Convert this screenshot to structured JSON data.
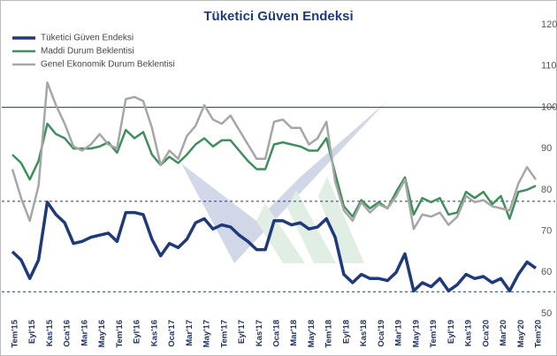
{
  "chart_data": {
    "type": "line",
    "title": "Tüketici Güven Endeksi",
    "categories": [
      "Tem'15",
      null,
      "Eyl'15",
      null,
      "Kas'15",
      null,
      "Oca'16",
      null,
      "Mar'16",
      null,
      "May'16",
      null,
      "Tem'16",
      null,
      "Eyl'16",
      null,
      "Kas'16",
      null,
      "Oca'17",
      null,
      "Mar'17",
      null,
      "May'17",
      null,
      "Tem'17",
      null,
      "Eyl'17",
      null,
      "Kas'17",
      null,
      "Oca'18",
      null,
      "Mar'18",
      null,
      "May'18",
      null,
      "Tem'18",
      null,
      "Eyl'18",
      null,
      "Kas'18",
      null,
      "Oca'19",
      null,
      "Mar'19",
      null,
      "May'19",
      null,
      "Tem'19",
      null,
      "Eyl'19",
      null,
      "Kas'19",
      null,
      "Oca'20",
      null,
      "Mar'20",
      null,
      "May'20",
      null,
      "Tem'20"
    ],
    "series": [
      {
        "name": "Tüketici Güven Endeksi",
        "color": "#1f3a7a",
        "width": 3.5,
        "values": [
          65,
          63,
          58.5,
          63,
          77,
          74,
          72,
          67,
          67.5,
          68.5,
          69,
          69.5,
          67.5,
          74.5,
          74.5,
          74,
          68,
          64,
          67,
          66,
          68,
          72,
          73,
          70.5,
          71.5,
          71,
          69,
          67.5,
          65.5,
          65.5,
          72.5,
          72.5,
          71.5,
          72,
          70.5,
          71,
          73,
          68.5,
          59.5,
          57.5,
          59.5,
          58.5,
          58.5,
          58,
          60,
          64.5,
          55.5,
          57.5,
          56.5,
          58.5,
          55.5,
          57,
          59.5,
          58.5,
          59,
          57.5,
          58.5,
          55.5,
          59.5,
          62.5,
          61
        ]
      },
      {
        "name": "Maddi Durum Beklentisi",
        "color": "#3f8f5a",
        "width": 2.5,
        "values": [
          88.5,
          86.5,
          82.5,
          87,
          96,
          93.5,
          92.5,
          90,
          90,
          90,
          90.5,
          91.5,
          89,
          94.5,
          92.5,
          94,
          88.5,
          86,
          88,
          86.5,
          88.5,
          91,
          92.5,
          90.5,
          92,
          92,
          89.5,
          87,
          85,
          85,
          91,
          91.5,
          91,
          90.5,
          89.5,
          89.5,
          92.5,
          84,
          76,
          73.5,
          77.5,
          75.5,
          77,
          75.5,
          79.5,
          83,
          74,
          78,
          77,
          78,
          74,
          74.5,
          79.5,
          78,
          79.5,
          76.5,
          78.5,
          73,
          79.5,
          80,
          81
        ]
      },
      {
        "name": "Genel Ekonomik Durum Beklentisi",
        "color": "#a6a6a6",
        "width": 2.5,
        "values": [
          85,
          78,
          72.5,
          81,
          106,
          100.5,
          96,
          90.5,
          89.5,
          91,
          93.5,
          91,
          90,
          102,
          102.5,
          101.5,
          95,
          86,
          89.5,
          87.5,
          93,
          95.5,
          100.5,
          97,
          96,
          98,
          94.5,
          91,
          87.5,
          87.5,
          96.5,
          97,
          95,
          95,
          91,
          92.5,
          96.5,
          82,
          75,
          72.5,
          77,
          74.5,
          76.5,
          75.5,
          78.5,
          82.5,
          70.5,
          74,
          73.5,
          74.5,
          71.5,
          73.5,
          78.5,
          77,
          77.5,
          76,
          75.5,
          75,
          81.5,
          85.5,
          82.5
        ]
      }
    ],
    "ylim": [
      50,
      120
    ],
    "yticks": [
      50,
      60,
      70,
      80,
      90,
      100,
      110,
      120
    ],
    "y_axis_side": "right",
    "reference_lines": [
      {
        "value": 100,
        "style": "solid"
      },
      {
        "value": 77.2,
        "style": "dashed"
      },
      {
        "value": 55.3,
        "style": "dashed"
      }
    ],
    "legend": "upper left"
  }
}
